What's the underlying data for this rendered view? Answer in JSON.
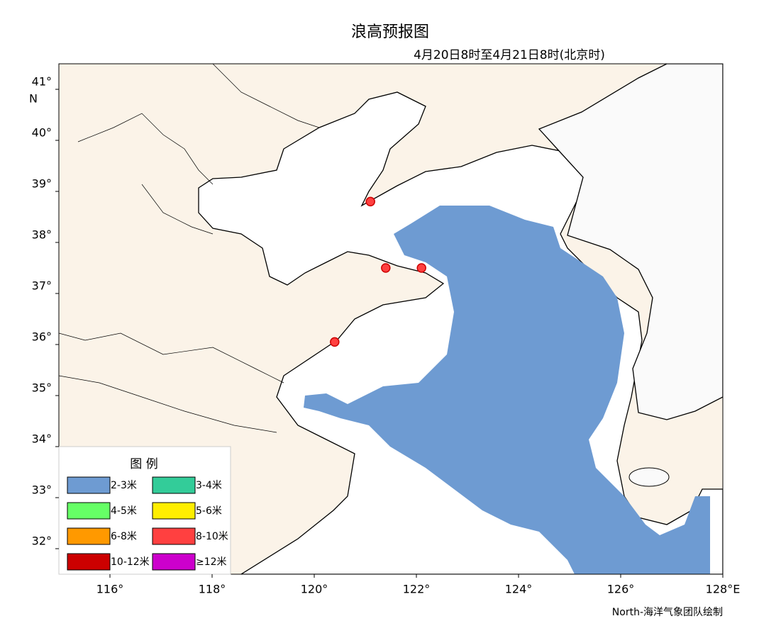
{
  "title": "浪高预报图",
  "subtitle": "4月20日8时至4月21日8时(北京时)",
  "map": {
    "xlim": [
      115,
      128
    ],
    "ylim": [
      31.5,
      41.5
    ],
    "xticks": [
      {
        "value": 116,
        "label": "116°"
      },
      {
        "value": 118,
        "label": "118°"
      },
      {
        "value": 120,
        "label": "120°"
      },
      {
        "value": 122,
        "label": "122°"
      },
      {
        "value": 124,
        "label": "124°"
      },
      {
        "value": 126,
        "label": "126°"
      },
      {
        "value": 128,
        "label": "128°E"
      }
    ],
    "yticks": [
      {
        "value": 32,
        "label": "32°"
      },
      {
        "value": 33,
        "label": "33°"
      },
      {
        "value": 34,
        "label": "34°"
      },
      {
        "value": 35,
        "label": "35°"
      },
      {
        "value": 36,
        "label": "36°"
      },
      {
        "value": 37,
        "label": "37°"
      },
      {
        "value": 38,
        "label": "38°"
      },
      {
        "value": 39,
        "label": "39°"
      },
      {
        "value": 40,
        "label": "40°"
      },
      {
        "value": 41,
        "label": "41°"
      }
    ],
    "y_unit": "N"
  },
  "stations": [
    {
      "lon": 121.1,
      "lat": 38.8
    },
    {
      "lon": 121.4,
      "lat": 37.5
    },
    {
      "lon": 122.1,
      "lat": 37.5
    },
    {
      "lon": 120.4,
      "lat": 36.05
    }
  ],
  "legend": {
    "title": "图 例",
    "items": [
      {
        "label": "2-3米",
        "color": "#6e9bd2"
      },
      {
        "label": "3-4米",
        "color": "#33cc99"
      },
      {
        "label": "4-5米",
        "color": "#66ff66"
      },
      {
        "label": "5-6米",
        "color": "#ffee00"
      },
      {
        "label": "6-8米",
        "color": "#ff9900"
      },
      {
        "label": "8-10米",
        "color": "#ff4040"
      },
      {
        "label": "10-12米",
        "color": "#cc0000"
      },
      {
        "label": "≥12米",
        "color": "#cc00cc"
      }
    ]
  },
  "credit": "North-海洋气象团队绘制"
}
